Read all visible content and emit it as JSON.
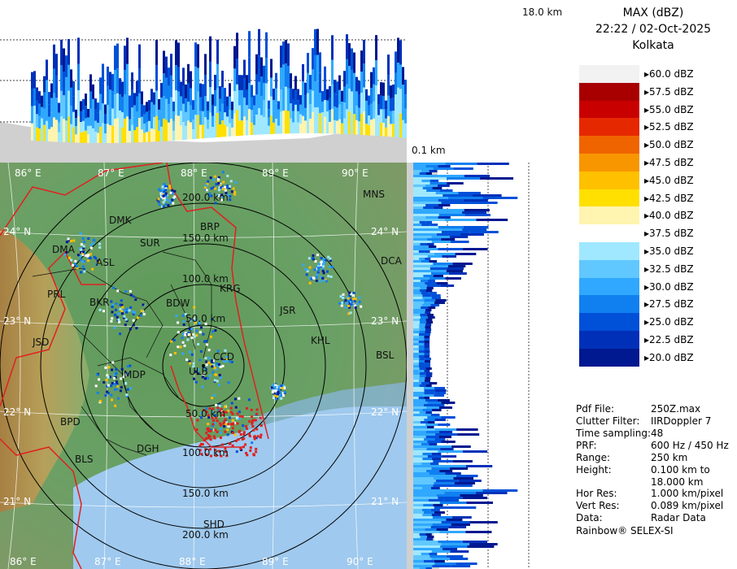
{
  "product": {
    "title": "MAX (dBZ)",
    "time": "22:22 / 02-Oct-2025",
    "site": "Kolkata"
  },
  "top_axis": {
    "max_label": "18.0 km",
    "min_label": "0.1 km"
  },
  "color_scale": [
    {
      "label": "60.0 dBZ",
      "color": "#f2f2f2"
    },
    {
      "label": "57.5 dBZ",
      "color": "#a80000"
    },
    {
      "label": "55.0 dBZ",
      "color": "#c80000"
    },
    {
      "label": "52.5 dBZ",
      "color": "#e62800"
    },
    {
      "label": "50.0 dBZ",
      "color": "#f06400"
    },
    {
      "label": "47.5 dBZ",
      "color": "#f89600"
    },
    {
      "label": "45.0 dBZ",
      "color": "#ffc000"
    },
    {
      "label": "42.5 dBZ",
      "color": "#ffe000"
    },
    {
      "label": "40.0 dBZ",
      "color": "#fff4b0"
    },
    {
      "label": "37.5 dBZ",
      "color": "#ffffff"
    },
    {
      "label": "35.0 dBZ",
      "color": "#a0e8ff"
    },
    {
      "label": "32.5 dBZ",
      "color": "#60c8ff"
    },
    {
      "label": "30.0 dBZ",
      "color": "#30a8ff"
    },
    {
      "label": "27.5 dBZ",
      "color": "#1080f0"
    },
    {
      "label": "25.0 dBZ",
      "color": "#0050d8"
    },
    {
      "label": "22.5 dBZ",
      "color": "#0030b8"
    },
    {
      "label": "20.0 dBZ",
      "color": "#001890"
    }
  ],
  "meta": [
    {
      "key": "Pdf File:",
      "value": "250Z.max"
    },
    {
      "key": "Clutter Filter:",
      "value": "IIRDoppler 7"
    },
    {
      "key": "Time sampling:",
      "value": "48"
    },
    {
      "key": "PRF:",
      "value": "600 Hz / 450 Hz"
    },
    {
      "key": "Range:",
      "value": "250 km"
    },
    {
      "key": "Height:",
      "value": "0.100 km to"
    },
    {
      "key": "",
      "value": "18.000 km"
    },
    {
      "key": "Hor Res:",
      "value": "1.000 km/pixel"
    },
    {
      "key": "Vert Res:",
      "value": "0.089 km/pixel"
    },
    {
      "key": "Data:",
      "value": "Radar Data"
    }
  ],
  "footer": "Rainbow® SELEX-SI",
  "map": {
    "lon_labels": [
      "86° E",
      "87° E",
      "88° E",
      "89° E",
      "90° E"
    ],
    "lat_labels": [
      "24° N",
      "23° N",
      "22° N",
      "21° N"
    ],
    "range_rings": [
      "50.0 km",
      "100.0 km",
      "150.0 km",
      "200.0 km"
    ],
    "stations": [
      "MNS",
      "DMK",
      "BRP",
      "SUR",
      "DMA",
      "ASL",
      "DCA",
      "PRL",
      "BKR",
      "KRG",
      "BDW",
      "JSR",
      "KHL",
      "BSL",
      "JSD",
      "CCD",
      "MDP",
      "ULB",
      "BPD",
      "DGH",
      "BLS",
      "SHD"
    ]
  }
}
